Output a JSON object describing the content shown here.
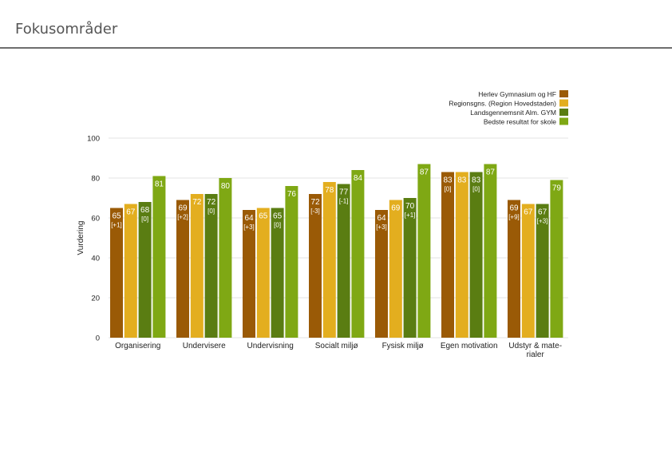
{
  "header": {
    "title": "Fokusområder"
  },
  "colors": {
    "series": [
      "#9a5a06",
      "#e3ae1f",
      "#5a7d12",
      "#7fa814"
    ],
    "grid": "#e3e3e3"
  },
  "chart_data": {
    "type": "bar",
    "title": "",
    "xlabel": "",
    "ylabel": "Vurdering",
    "ylim": [
      0,
      100
    ],
    "yticks": [
      0,
      20,
      40,
      60,
      80,
      100
    ],
    "grid": true,
    "legend_position": "top-right",
    "categories": [
      [
        "Organisering"
      ],
      [
        "Undervisere"
      ],
      [
        "Undervisning"
      ],
      [
        "Socialt miljø"
      ],
      [
        "Fysisk miljø"
      ],
      [
        "Egen motivation"
      ],
      [
        "Udstyr & mate-",
        "rialer"
      ]
    ],
    "series": [
      {
        "name": "Herlev Gymnasium og HF",
        "values": [
          65,
          69,
          64,
          72,
          64,
          83,
          69
        ]
      },
      {
        "name": "Regionsgns. (Region Hovedstaden)",
        "values": [
          67,
          72,
          65,
          78,
          69,
          83,
          67
        ]
      },
      {
        "name": "Landsgennemsnit Alm. GYM",
        "values": [
          68,
          72,
          65,
          77,
          70,
          83,
          67
        ]
      },
      {
        "name": "Bedste resultat for skole",
        "values": [
          81,
          80,
          76,
          84,
          87,
          87,
          79
        ]
      }
    ],
    "deltas": {
      "0": [
        "[+1]",
        "[+2]",
        "[+3]",
        "[-3]",
        "[+3]",
        "[0]",
        "[+9]"
      ],
      "2": [
        "[0]",
        "[0]",
        "[0]",
        "[-1]",
        "[+1]",
        "[0]",
        "[+3]"
      ]
    }
  }
}
